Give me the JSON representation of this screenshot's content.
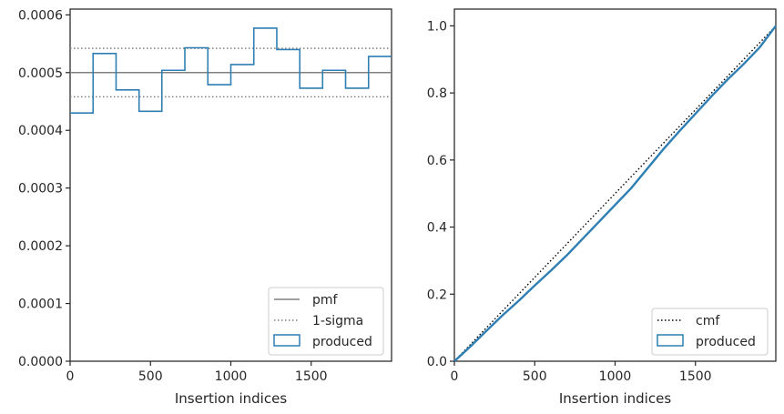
{
  "chart_data": [
    {
      "type": "histogram-step",
      "xlabel": "Insertion indices",
      "ylabel": "",
      "xlim": [
        0,
        2000
      ],
      "ylim": [
        0,
        0.00061
      ],
      "xticks": [
        0,
        500,
        1000,
        1500
      ],
      "xtick_labels": [
        "0",
        "500",
        "1000",
        "1500"
      ],
      "yticks": [
        0,
        0.0001,
        0.0002,
        0.0003,
        0.0004,
        0.0005,
        0.0006
      ],
      "ytick_labels": [
        "0.0000",
        "0.0001",
        "0.0002",
        "0.0003",
        "0.0004",
        "0.0005",
        "0.0006"
      ],
      "grid": false,
      "legend_position": "lower-right",
      "series": [
        {
          "name": "pmf",
          "style": "solid",
          "color": "#808080",
          "y": 0.0005
        },
        {
          "name": "1-sigma",
          "style": "dotted",
          "color": "#808080",
          "y_values": [
            0.000542,
            0.000458
          ]
        },
        {
          "name": "produced",
          "style": "step",
          "color": "#2f7fb4",
          "bin_edges": [
            0,
            143,
            286,
            429,
            571,
            714,
            857,
            1000,
            1143,
            1286,
            1429,
            1571,
            1714,
            1857,
            2000
          ],
          "values": [
            0.00043,
            0.000533,
            0.00047,
            0.000433,
            0.000504,
            0.000543,
            0.000479,
            0.000514,
            0.000577,
            0.00054,
            0.000473,
            0.000504,
            0.000473,
            0.000528
          ]
        }
      ]
    },
    {
      "type": "line",
      "xlabel": "Insertion indices",
      "ylabel": "",
      "xlim": [
        0,
        2000
      ],
      "ylim": [
        0,
        1.05
      ],
      "xticks": [
        0,
        500,
        1000,
        1500
      ],
      "xtick_labels": [
        "0",
        "500",
        "1000",
        "1500"
      ],
      "yticks": [
        0,
        0.2,
        0.4,
        0.6,
        0.8,
        1.0
      ],
      "ytick_labels": [
        "0.0",
        "0.2",
        "0.4",
        "0.6",
        "0.8",
        "1.0"
      ],
      "grid": false,
      "legend_position": "lower-right",
      "series": [
        {
          "name": "cmf",
          "style": "dotted",
          "color": "#000000",
          "x": [
            0,
            2000
          ],
          "y": [
            0,
            1.0
          ]
        },
        {
          "name": "produced",
          "style": "solid",
          "color": "#2f7fb4",
          "x": [
            0,
            100,
            200,
            300,
            400,
            500,
            600,
            700,
            800,
            900,
            1000,
            1100,
            1200,
            1300,
            1400,
            1500,
            1600,
            1700,
            1800,
            1900,
            2000
          ],
          "y": [
            0,
            0.044,
            0.091,
            0.137,
            0.18,
            0.226,
            0.27,
            0.316,
            0.366,
            0.416,
            0.466,
            0.516,
            0.574,
            0.632,
            0.686,
            0.738,
            0.79,
            0.84,
            0.886,
            0.936,
            1.0
          ]
        }
      ]
    }
  ]
}
